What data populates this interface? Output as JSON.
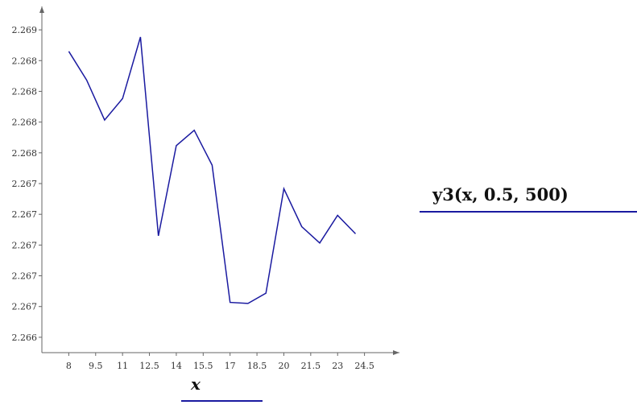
{
  "chart_data": {
    "type": "line",
    "xlabel": "x",
    "ylabel": "",
    "xlim": [
      6.5,
      26
    ],
    "ylim": [
      2.26585,
      2.26915
    ],
    "x_ticks": [
      8,
      9.5,
      11,
      12.5,
      14,
      15.5,
      17,
      18.5,
      20,
      21.5,
      23,
      24.5
    ],
    "x_tick_labels": [
      "8",
      "9.5",
      "11",
      "12.5",
      "14",
      "15.5",
      "17",
      "18.5",
      "20",
      "21.5",
      "23",
      "24.5"
    ],
    "y_ticks": [
      2.266,
      2.2663,
      2.2666,
      2.2669,
      2.2672,
      2.2675,
      2.2678,
      2.2681,
      2.2684,
      2.2687,
      2.269
    ],
    "y_tick_labels": [
      "2.266",
      "2.267",
      "2.267",
      "2.267",
      "2.267",
      "2.267",
      "2.268",
      "2.268",
      "2.268",
      "2.268",
      "2.269"
    ],
    "grid": false,
    "legend_position": "right",
    "series": [
      {
        "name": "y3(x, 0.5, 500)",
        "color": "#1a1aa0",
        "x": [
          8,
          9,
          10,
          11,
          12,
          13,
          14,
          15,
          16,
          17,
          18,
          19,
          20,
          21,
          22,
          23,
          24
        ],
        "y": [
          2.26879,
          2.26851,
          2.26812,
          2.26833,
          2.26893,
          2.26699,
          2.26787,
          2.26802,
          2.26768,
          2.26634,
          2.26633,
          2.26643,
          2.26745,
          2.26708,
          2.26692,
          2.26719,
          2.26701
        ]
      }
    ]
  }
}
